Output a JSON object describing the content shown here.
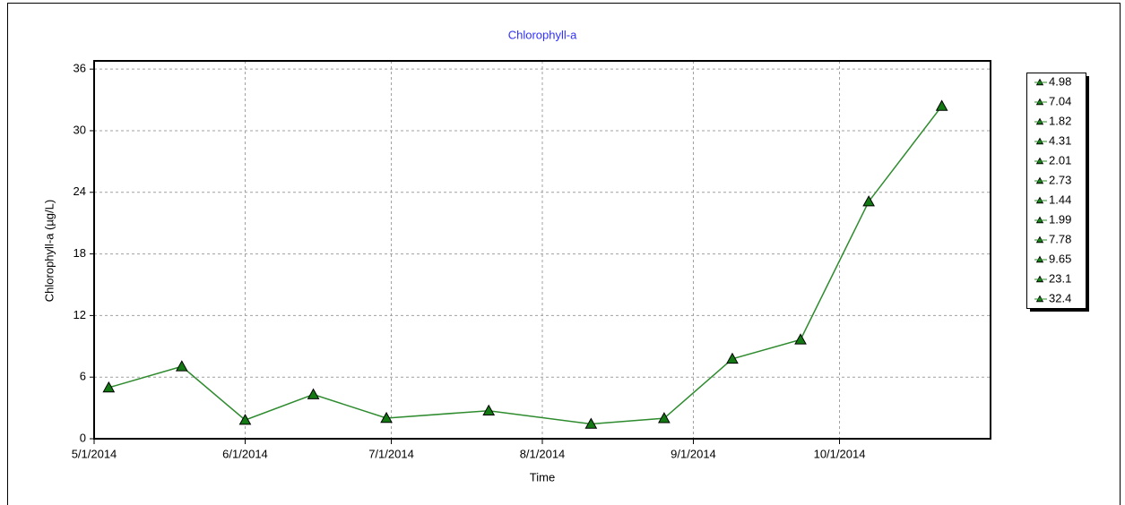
{
  "chart_data": {
    "type": "line",
    "title": "Chlorophyll-a",
    "x_label": "Time",
    "y_label": "Chlorophyll-a (µg/L)",
    "x": [
      "2014-05-04",
      "2014-05-19",
      "2014-06-01",
      "2014-06-15",
      "2014-06-30",
      "2014-07-21",
      "2014-08-11",
      "2014-08-26",
      "2014-09-09",
      "2014-09-23",
      "2014-10-07",
      "2014-10-22"
    ],
    "values": [
      4.98,
      7.04,
      1.82,
      4.31,
      2.01,
      2.73,
      1.44,
      1.99,
      7.78,
      9.65,
      23.1,
      32.4
    ],
    "color": "#2e8b2e",
    "marker_color": "#137a13",
    "xlim": [
      "2014-05-01",
      "2014-11-01"
    ],
    "xticks": [
      {
        "value": "2014-05-01",
        "label": "5/1/2014"
      },
      {
        "value": "2014-06-01",
        "label": "6/1/2014"
      },
      {
        "value": "2014-07-01",
        "label": "7/1/2014"
      },
      {
        "value": "2014-08-01",
        "label": "8/1/2014"
      },
      {
        "value": "2014-09-01",
        "label": "9/1/2014"
      },
      {
        "value": "2014-10-01",
        "label": "10/1/2014"
      }
    ],
    "ylim": [
      0,
      36.8
    ],
    "yticks": [
      0,
      6,
      12,
      18,
      24,
      30,
      36
    ],
    "grid": true
  }
}
